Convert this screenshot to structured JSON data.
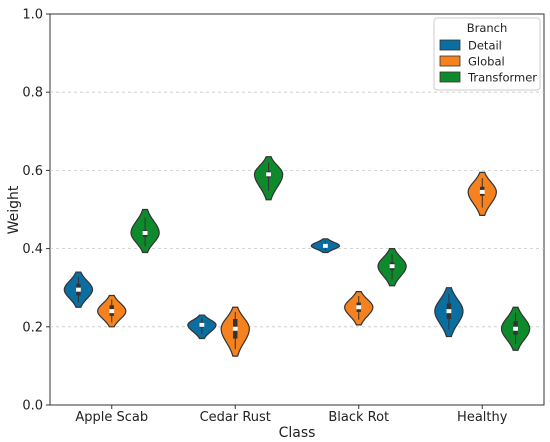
{
  "chart_data": {
    "type": "violin",
    "title": "",
    "xlabel": "Class",
    "ylabel": "Weight",
    "ylim": [
      0.0,
      1.0
    ],
    "yticks": [
      "0.0",
      "0.2",
      "0.4",
      "0.6",
      "0.8",
      "1.0"
    ],
    "ytick_values": [
      0.0,
      0.2,
      0.4,
      0.6,
      0.8,
      1.0
    ],
    "grid": "horizontal dashed",
    "categories": [
      "Apple Scab",
      "Cedar Rust",
      "Black Rot",
      "Healthy"
    ],
    "legend": {
      "title": "Branch",
      "placement": "top-right"
    },
    "series": [
      {
        "name": "Detail",
        "color": "#0a6fa0",
        "violins": [
          {
            "min": 0.25,
            "max": 0.34,
            "median": 0.295,
            "q1": 0.28,
            "q3": 0.31
          },
          {
            "min": 0.17,
            "max": 0.23,
            "median": 0.205,
            "q1": 0.198,
            "q3": 0.212
          },
          {
            "min": 0.39,
            "max": 0.425,
            "median": 0.407,
            "q1": 0.402,
            "q3": 0.412
          },
          {
            "min": 0.175,
            "max": 0.3,
            "median": 0.24,
            "q1": 0.22,
            "q3": 0.26
          }
        ]
      },
      {
        "name": "Global",
        "color": "#f5811f",
        "violins": [
          {
            "min": 0.2,
            "max": 0.28,
            "median": 0.24,
            "q1": 0.228,
            "q3": 0.255
          },
          {
            "min": 0.125,
            "max": 0.25,
            "median": 0.195,
            "q1": 0.17,
            "q3": 0.22
          },
          {
            "min": 0.205,
            "max": 0.29,
            "median": 0.25,
            "q1": 0.238,
            "q3": 0.262
          },
          {
            "min": 0.485,
            "max": 0.595,
            "median": 0.545,
            "q1": 0.535,
            "q3": 0.558
          }
        ]
      },
      {
        "name": "Transformer",
        "color": "#0e8a2c",
        "violins": [
          {
            "min": 0.39,
            "max": 0.5,
            "median": 0.44,
            "q1": 0.43,
            "q3": 0.448
          },
          {
            "min": 0.525,
            "max": 0.635,
            "median": 0.59,
            "q1": 0.582,
            "q3": 0.598
          },
          {
            "min": 0.305,
            "max": 0.4,
            "median": 0.355,
            "q1": 0.345,
            "q3": 0.365
          },
          {
            "min": 0.14,
            "max": 0.25,
            "median": 0.195,
            "q1": 0.18,
            "q3": 0.215
          }
        ]
      }
    ]
  }
}
